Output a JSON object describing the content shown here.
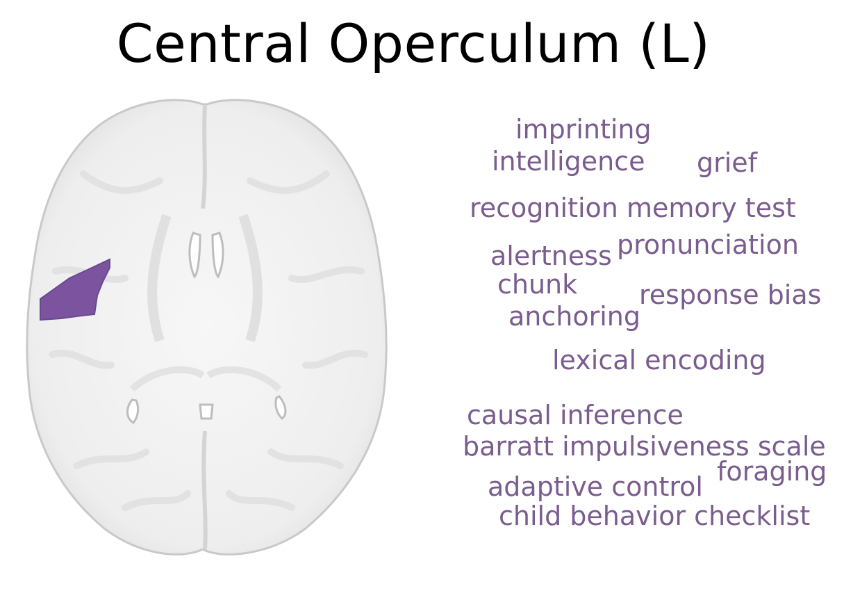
{
  "title": "Central Operculum (L)",
  "colors": {
    "highlight": "#7b539f",
    "word": "#7a5c8e",
    "brain_fill": "#efefef",
    "brain_edge": "#c9c9c9"
  },
  "brain_image": {
    "view": "axial",
    "highlighted_region": "left central operculum"
  },
  "words": [
    {
      "id": "imprinting",
      "text": "imprinting"
    },
    {
      "id": "intelligence",
      "text": "intelligence"
    },
    {
      "id": "grief",
      "text": "grief"
    },
    {
      "id": "recognition-memory-test",
      "text": "recognition memory test"
    },
    {
      "id": "pronunciation",
      "text": "pronunciation"
    },
    {
      "id": "alertness",
      "text": "alertness"
    },
    {
      "id": "chunk",
      "text": "chunk"
    },
    {
      "id": "response-bias",
      "text": "response bias"
    },
    {
      "id": "anchoring",
      "text": "anchoring"
    },
    {
      "id": "lexical-encoding",
      "text": "lexical encoding"
    },
    {
      "id": "causal-inference",
      "text": "causal inference"
    },
    {
      "id": "barratt-impulsiveness-scale",
      "text": "barratt impulsiveness scale"
    },
    {
      "id": "foraging",
      "text": "foraging"
    },
    {
      "id": "adaptive-control",
      "text": "adaptive control"
    },
    {
      "id": "child-behavior-checklist",
      "text": "child behavior checklist"
    }
  ]
}
